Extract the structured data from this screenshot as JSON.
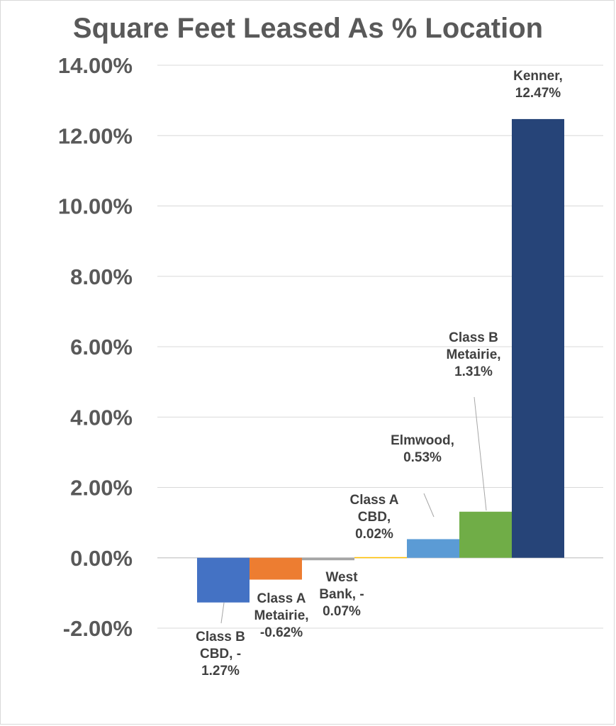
{
  "chart_data": {
    "type": "bar",
    "title": "Square Feet Leased As % Location",
    "xlabel": "",
    "ylabel": "",
    "ylim": [
      -0.02,
      0.14
    ],
    "y_ticks": [
      -0.02,
      0,
      0.02,
      0.04,
      0.06,
      0.08,
      0.1,
      0.12,
      0.14
    ],
    "y_tick_labels": [
      "-2.00%",
      "0.00%",
      "2.00%",
      "4.00%",
      "6.00%",
      "8.00%",
      "10.00%",
      "12.00%",
      "14.00%"
    ],
    "grid": true,
    "legend": "none",
    "categories": [
      "Class B CBD",
      "Class A Metairie",
      "West Bank",
      "Class A CBD",
      "Elmwood",
      "Class B Metairie",
      "Kenner"
    ],
    "values": [
      -0.0127,
      -0.0062,
      -0.0007,
      0.0002,
      0.0053,
      0.0131,
      0.1247
    ],
    "colors": [
      "#4472c4",
      "#ed7d31",
      "#a5a5a5",
      "#ffc000",
      "#5b9bd5",
      "#70ad47",
      "#264478"
    ],
    "data_labels": [
      [
        "Class B",
        "CBD, -",
        "1.27%"
      ],
      [
        "Class A",
        "Metairie,",
        "-0.62%"
      ],
      [
        "West",
        "Bank, -",
        "0.07%"
      ],
      [
        "Class A",
        "CBD,",
        "0.02%"
      ],
      [
        "Elmwood,",
        "0.53%"
      ],
      [
        "Class B",
        "Metairie,",
        "1.31%"
      ],
      [
        "Kenner,",
        "12.47%"
      ]
    ]
  }
}
